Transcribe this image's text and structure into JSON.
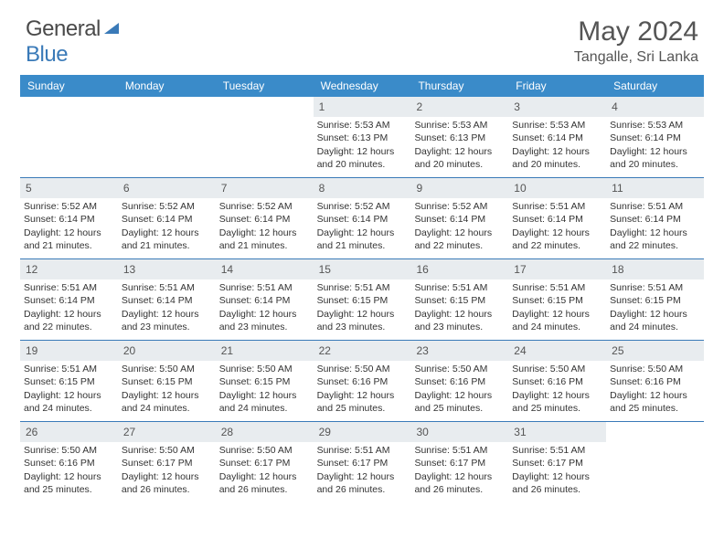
{
  "brand": {
    "part1": "General",
    "part2": "Blue"
  },
  "title": "May 2024",
  "location": "Tangalle, Sri Lanka",
  "colors": {
    "header_bg": "#3a8bc9",
    "border": "#3a7ab8",
    "daynum_bg": "#e8ecef",
    "text": "#333333",
    "title_text": "#555555"
  },
  "weekdays": [
    "Sunday",
    "Monday",
    "Tuesday",
    "Wednesday",
    "Thursday",
    "Friday",
    "Saturday"
  ],
  "weeks": [
    [
      {
        "n": "",
        "sr": "",
        "ss": "",
        "dl": ""
      },
      {
        "n": "",
        "sr": "",
        "ss": "",
        "dl": ""
      },
      {
        "n": "",
        "sr": "",
        "ss": "",
        "dl": ""
      },
      {
        "n": "1",
        "sr": "Sunrise: 5:53 AM",
        "ss": "Sunset: 6:13 PM",
        "dl": "Daylight: 12 hours and 20 minutes."
      },
      {
        "n": "2",
        "sr": "Sunrise: 5:53 AM",
        "ss": "Sunset: 6:13 PM",
        "dl": "Daylight: 12 hours and 20 minutes."
      },
      {
        "n": "3",
        "sr": "Sunrise: 5:53 AM",
        "ss": "Sunset: 6:14 PM",
        "dl": "Daylight: 12 hours and 20 minutes."
      },
      {
        "n": "4",
        "sr": "Sunrise: 5:53 AM",
        "ss": "Sunset: 6:14 PM",
        "dl": "Daylight: 12 hours and 20 minutes."
      }
    ],
    [
      {
        "n": "5",
        "sr": "Sunrise: 5:52 AM",
        "ss": "Sunset: 6:14 PM",
        "dl": "Daylight: 12 hours and 21 minutes."
      },
      {
        "n": "6",
        "sr": "Sunrise: 5:52 AM",
        "ss": "Sunset: 6:14 PM",
        "dl": "Daylight: 12 hours and 21 minutes."
      },
      {
        "n": "7",
        "sr": "Sunrise: 5:52 AM",
        "ss": "Sunset: 6:14 PM",
        "dl": "Daylight: 12 hours and 21 minutes."
      },
      {
        "n": "8",
        "sr": "Sunrise: 5:52 AM",
        "ss": "Sunset: 6:14 PM",
        "dl": "Daylight: 12 hours and 21 minutes."
      },
      {
        "n": "9",
        "sr": "Sunrise: 5:52 AM",
        "ss": "Sunset: 6:14 PM",
        "dl": "Daylight: 12 hours and 22 minutes."
      },
      {
        "n": "10",
        "sr": "Sunrise: 5:51 AM",
        "ss": "Sunset: 6:14 PM",
        "dl": "Daylight: 12 hours and 22 minutes."
      },
      {
        "n": "11",
        "sr": "Sunrise: 5:51 AM",
        "ss": "Sunset: 6:14 PM",
        "dl": "Daylight: 12 hours and 22 minutes."
      }
    ],
    [
      {
        "n": "12",
        "sr": "Sunrise: 5:51 AM",
        "ss": "Sunset: 6:14 PM",
        "dl": "Daylight: 12 hours and 22 minutes."
      },
      {
        "n": "13",
        "sr": "Sunrise: 5:51 AM",
        "ss": "Sunset: 6:14 PM",
        "dl": "Daylight: 12 hours and 23 minutes."
      },
      {
        "n": "14",
        "sr": "Sunrise: 5:51 AM",
        "ss": "Sunset: 6:14 PM",
        "dl": "Daylight: 12 hours and 23 minutes."
      },
      {
        "n": "15",
        "sr": "Sunrise: 5:51 AM",
        "ss": "Sunset: 6:15 PM",
        "dl": "Daylight: 12 hours and 23 minutes."
      },
      {
        "n": "16",
        "sr": "Sunrise: 5:51 AM",
        "ss": "Sunset: 6:15 PM",
        "dl": "Daylight: 12 hours and 23 minutes."
      },
      {
        "n": "17",
        "sr": "Sunrise: 5:51 AM",
        "ss": "Sunset: 6:15 PM",
        "dl": "Daylight: 12 hours and 24 minutes."
      },
      {
        "n": "18",
        "sr": "Sunrise: 5:51 AM",
        "ss": "Sunset: 6:15 PM",
        "dl": "Daylight: 12 hours and 24 minutes."
      }
    ],
    [
      {
        "n": "19",
        "sr": "Sunrise: 5:51 AM",
        "ss": "Sunset: 6:15 PM",
        "dl": "Daylight: 12 hours and 24 minutes."
      },
      {
        "n": "20",
        "sr": "Sunrise: 5:50 AM",
        "ss": "Sunset: 6:15 PM",
        "dl": "Daylight: 12 hours and 24 minutes."
      },
      {
        "n": "21",
        "sr": "Sunrise: 5:50 AM",
        "ss": "Sunset: 6:15 PM",
        "dl": "Daylight: 12 hours and 24 minutes."
      },
      {
        "n": "22",
        "sr": "Sunrise: 5:50 AM",
        "ss": "Sunset: 6:16 PM",
        "dl": "Daylight: 12 hours and 25 minutes."
      },
      {
        "n": "23",
        "sr": "Sunrise: 5:50 AM",
        "ss": "Sunset: 6:16 PM",
        "dl": "Daylight: 12 hours and 25 minutes."
      },
      {
        "n": "24",
        "sr": "Sunrise: 5:50 AM",
        "ss": "Sunset: 6:16 PM",
        "dl": "Daylight: 12 hours and 25 minutes."
      },
      {
        "n": "25",
        "sr": "Sunrise: 5:50 AM",
        "ss": "Sunset: 6:16 PM",
        "dl": "Daylight: 12 hours and 25 minutes."
      }
    ],
    [
      {
        "n": "26",
        "sr": "Sunrise: 5:50 AM",
        "ss": "Sunset: 6:16 PM",
        "dl": "Daylight: 12 hours and 25 minutes."
      },
      {
        "n": "27",
        "sr": "Sunrise: 5:50 AM",
        "ss": "Sunset: 6:17 PM",
        "dl": "Daylight: 12 hours and 26 minutes."
      },
      {
        "n": "28",
        "sr": "Sunrise: 5:50 AM",
        "ss": "Sunset: 6:17 PM",
        "dl": "Daylight: 12 hours and 26 minutes."
      },
      {
        "n": "29",
        "sr": "Sunrise: 5:51 AM",
        "ss": "Sunset: 6:17 PM",
        "dl": "Daylight: 12 hours and 26 minutes."
      },
      {
        "n": "30",
        "sr": "Sunrise: 5:51 AM",
        "ss": "Sunset: 6:17 PM",
        "dl": "Daylight: 12 hours and 26 minutes."
      },
      {
        "n": "31",
        "sr": "Sunrise: 5:51 AM",
        "ss": "Sunset: 6:17 PM",
        "dl": "Daylight: 12 hours and 26 minutes."
      },
      {
        "n": "",
        "sr": "",
        "ss": "",
        "dl": ""
      }
    ]
  ]
}
